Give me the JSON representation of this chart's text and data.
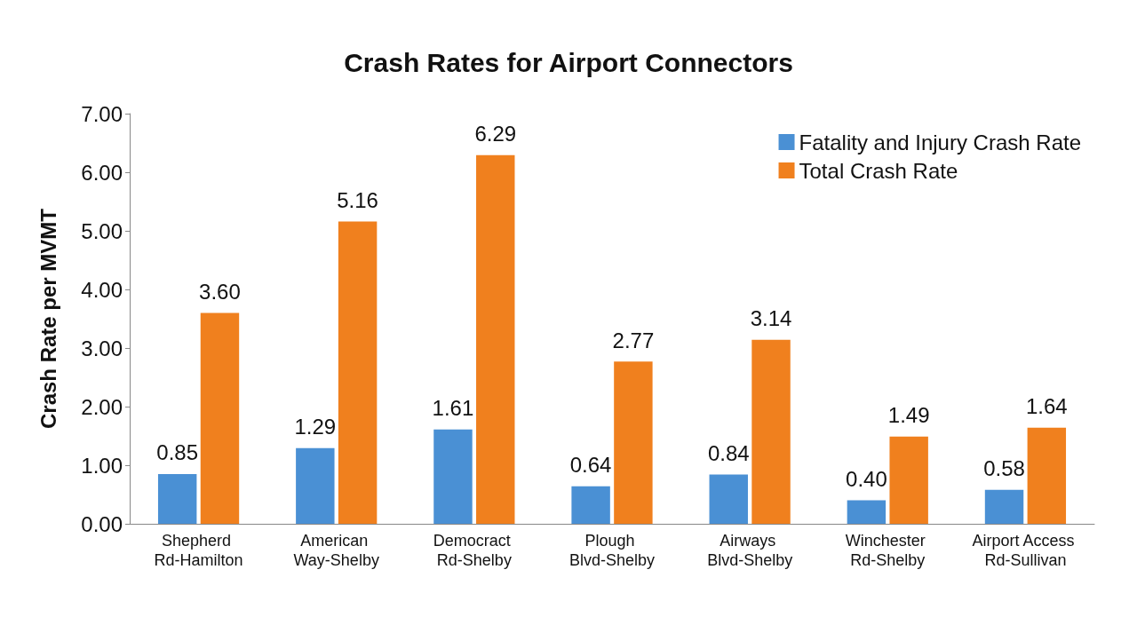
{
  "chart_data": {
    "type": "bar",
    "title": "Crash Rates for Airport Connectors",
    "ylabel": "Crash Rate per MVMT",
    "categories": [
      "Shepherd Rd-Hamilton",
      "American Way-Shelby",
      "Democract Rd-Shelby",
      "Plough Blvd-Shelby",
      "Airways Blvd-Shelby",
      "Winchester Rd-Shelby",
      "Airport Access Rd-Sullivan"
    ],
    "series": [
      {
        "name": "Fatality and Injury Crash Rate",
        "color": "#4a90d4",
        "values": [
          0.85,
          1.29,
          1.61,
          0.64,
          0.84,
          0.4,
          0.58
        ],
        "value_labels": [
          "0.85",
          "1.29",
          "1.61",
          "0.64",
          "0.84",
          "0.40",
          "0.58"
        ]
      },
      {
        "name": "Total Crash Rate",
        "color": "#f0801e",
        "values": [
          3.6,
          5.16,
          6.29,
          2.77,
          3.14,
          1.49,
          1.64
        ],
        "value_labels": [
          "3.60",
          "5.16",
          "6.29",
          "2.77",
          "3.14",
          "1.49",
          "1.64"
        ]
      }
    ],
    "ylim": [
      0,
      7
    ],
    "yticks": [
      {
        "value": 0,
        "label": "0.00"
      },
      {
        "value": 1,
        "label": "1.00"
      },
      {
        "value": 2,
        "label": "2.00"
      },
      {
        "value": 3,
        "label": "3.00"
      },
      {
        "value": 4,
        "label": "4.00"
      },
      {
        "value": 5,
        "label": "5.00"
      },
      {
        "value": 6,
        "label": "6.00"
      },
      {
        "value": 7,
        "label": "7.00"
      }
    ],
    "grid": false,
    "legend": "top right"
  }
}
